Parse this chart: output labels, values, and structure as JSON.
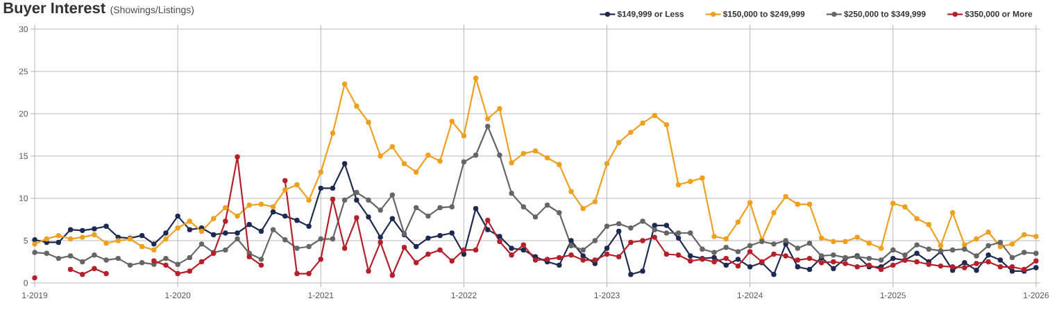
{
  "chart_data": {
    "type": "line",
    "title": "Buyer Interest",
    "subtitle": "(Showings/Listings)",
    "x": [
      "2019-01",
      "2019-02",
      "2019-03",
      "2019-04",
      "2019-05",
      "2019-06",
      "2019-07",
      "2019-08",
      "2019-09",
      "2019-10",
      "2019-11",
      "2019-12",
      "2020-01",
      "2020-02",
      "2020-03",
      "2020-04",
      "2020-05",
      "2020-06",
      "2020-07",
      "2020-08",
      "2020-09",
      "2020-10",
      "2020-11",
      "2020-12",
      "2021-01",
      "2021-02",
      "2021-03",
      "2021-04",
      "2021-05",
      "2021-06",
      "2021-07",
      "2021-08",
      "2021-09",
      "2021-10",
      "2021-11",
      "2021-12",
      "2022-01",
      "2022-02",
      "2022-03",
      "2022-04",
      "2022-05",
      "2022-06",
      "2022-07",
      "2022-08",
      "2022-09",
      "2022-10",
      "2022-11",
      "2022-12",
      "2023-01",
      "2023-02",
      "2023-03",
      "2023-04",
      "2023-05",
      "2023-06",
      "2023-07",
      "2023-08",
      "2023-09",
      "2023-10",
      "2023-11",
      "2023-12",
      "2024-01",
      "2024-02",
      "2024-03",
      "2024-04",
      "2024-05",
      "2024-06",
      "2024-07",
      "2024-08",
      "2024-09",
      "2024-10",
      "2024-11",
      "2024-12",
      "2025-01",
      "2025-02",
      "2025-03",
      "2025-04",
      "2025-05",
      "2025-06",
      "2025-07",
      "2025-08",
      "2025-09",
      "2025-10",
      "2025-11",
      "2025-12",
      "2026-01"
    ],
    "series": [
      {
        "name": "$149,999 or Less",
        "color": "#1f2a52",
        "values": [
          5.1,
          4.8,
          4.8,
          6.3,
          6.2,
          6.4,
          6.7,
          5.4,
          5.3,
          5.6,
          4.6,
          5.9,
          7.9,
          6.3,
          6.5,
          5.7,
          5.9,
          5.9,
          6.9,
          6.1,
          8.4,
          7.9,
          7.4,
          6.7,
          11.2,
          11.2,
          14.1,
          9.8,
          7.8,
          5.4,
          7.6,
          5.7,
          4.3,
          5.3,
          5.6,
          5.9,
          3.4,
          8.8,
          6.3,
          5.5,
          4.1,
          3.9,
          3.1,
          2.5,
          2.1,
          5.0,
          3.2,
          2.3,
          4.1,
          6.1,
          1.0,
          1.4,
          6.8,
          6.8,
          5.3,
          3.2,
          2.9,
          3.0,
          2.1,
          2.8,
          1.9,
          2.4,
          1.0,
          4.6,
          1.9,
          1.6,
          3.0,
          1.7,
          2.9,
          3.2,
          1.9,
          1.9,
          2.9,
          2.7,
          3.5,
          2.5,
          3.7,
          1.5,
          2.4,
          1.5,
          3.3,
          2.7,
          1.4,
          1.4,
          1.8
        ]
      },
      {
        "name": "$150,000 to $249,999",
        "color": "#f0a020",
        "values": [
          4.6,
          5.2,
          5.6,
          5.2,
          5.4,
          5.7,
          4.7,
          5.0,
          5.2,
          4.3,
          3.9,
          5.2,
          6.5,
          7.3,
          6.1,
          7.6,
          8.9,
          7.9,
          9.2,
          9.3,
          9.0,
          11.0,
          11.6,
          9.8,
          13.1,
          17.7,
          23.5,
          20.9,
          19.0,
          15.0,
          16.1,
          14.1,
          13.1,
          15.1,
          14.4,
          19.1,
          17.4,
          24.2,
          19.4,
          20.6,
          14.2,
          15.3,
          15.6,
          14.8,
          14.0,
          10.8,
          8.8,
          9.6,
          14.1,
          16.6,
          17.8,
          18.9,
          19.8,
          18.7,
          11.6,
          12.0,
          12.4,
          5.5,
          5.2,
          7.2,
          9.5,
          5.1,
          8.3,
          10.2,
          9.3,
          9.3,
          5.3,
          4.9,
          4.9,
          5.4,
          4.7,
          4.1,
          9.4,
          9.0,
          7.6,
          6.9,
          4.4,
          8.3,
          4.5,
          5.2,
          6.0,
          4.3,
          4.6,
          5.7,
          5.5
        ]
      },
      {
        "name": "$250,000 to $349,999",
        "color": "#666666",
        "values": [
          3.6,
          3.5,
          2.9,
          3.2,
          2.5,
          3.3,
          2.7,
          2.9,
          2.1,
          2.4,
          2.2,
          2.9,
          2.2,
          3.0,
          4.6,
          3.6,
          3.9,
          5.2,
          3.5,
          2.8,
          6.3,
          5.1,
          4.1,
          4.3,
          5.2,
          5.2,
          9.8,
          10.7,
          9.8,
          8.6,
          10.4,
          5.8,
          8.9,
          7.9,
          8.9,
          9.0,
          14.3,
          15.1,
          18.5,
          15.1,
          10.6,
          9.0,
          7.8,
          9.2,
          8.3,
          4.4,
          3.9,
          5.0,
          6.7,
          7.0,
          6.5,
          7.3,
          6.3,
          5.9,
          5.9,
          5.9,
          4.0,
          3.6,
          4.2,
          3.7,
          4.4,
          4.9,
          4.6,
          5.0,
          4.1,
          4.7,
          3.2,
          3.3,
          3.0,
          3.1,
          2.9,
          2.7,
          3.9,
          3.3,
          4.5,
          4.0,
          3.8,
          3.9,
          4.0,
          3.2,
          4.4,
          4.8,
          3.0,
          3.6,
          3.5
        ]
      },
      {
        "name": "$350,000 or More",
        "color": "#b5202a",
        "values": [
          0.6,
          null,
          null,
          1.6,
          1.0,
          1.7,
          1.1,
          null,
          null,
          null,
          2.6,
          2.1,
          1.1,
          1.4,
          2.5,
          3.5,
          7.3,
          14.9,
          3.1,
          2.1,
          null,
          12.1,
          1.1,
          1.1,
          2.8,
          9.9,
          4.1,
          7.7,
          1.4,
          4.8,
          0.9,
          4.2,
          2.4,
          3.4,
          3.9,
          2.6,
          3.9,
          3.9,
          7.4,
          4.9,
          3.3,
          4.5,
          2.7,
          2.8,
          3.0,
          3.3,
          2.7,
          2.7,
          3.4,
          3.1,
          4.8,
          5.0,
          5.4,
          3.4,
          3.3,
          2.6,
          2.8,
          2.5,
          2.9,
          2.0,
          3.7,
          2.5,
          3.4,
          3.2,
          2.7,
          2.9,
          2.4,
          2.5,
          2.3,
          1.9,
          2.1,
          1.6,
          2.1,
          2.7,
          2.5,
          2.2,
          2.0,
          1.9,
          1.8,
          2.3,
          2.5,
          1.9,
          1.9,
          1.6,
          2.6
        ]
      }
    ],
    "xlim": [
      "2019-01",
      "2026-01"
    ],
    "xticks": [
      {
        "value": "2019-01",
        "label": "1-2019"
      },
      {
        "value": "2020-01",
        "label": "1-2020"
      },
      {
        "value": "2021-01",
        "label": "1-2021"
      },
      {
        "value": "2022-01",
        "label": "1-2022"
      },
      {
        "value": "2023-01",
        "label": "1-2023"
      },
      {
        "value": "2024-01",
        "label": "1-2024"
      },
      {
        "value": "2025-01",
        "label": "1-2025"
      },
      {
        "value": "2026-01",
        "label": "1-2026"
      }
    ],
    "ylim": [
      0,
      30
    ],
    "yticks": [
      0,
      5,
      10,
      15,
      20,
      25,
      30
    ],
    "grid": true,
    "legend": "top right",
    "marker": "circle",
    "line_style": "solid"
  }
}
